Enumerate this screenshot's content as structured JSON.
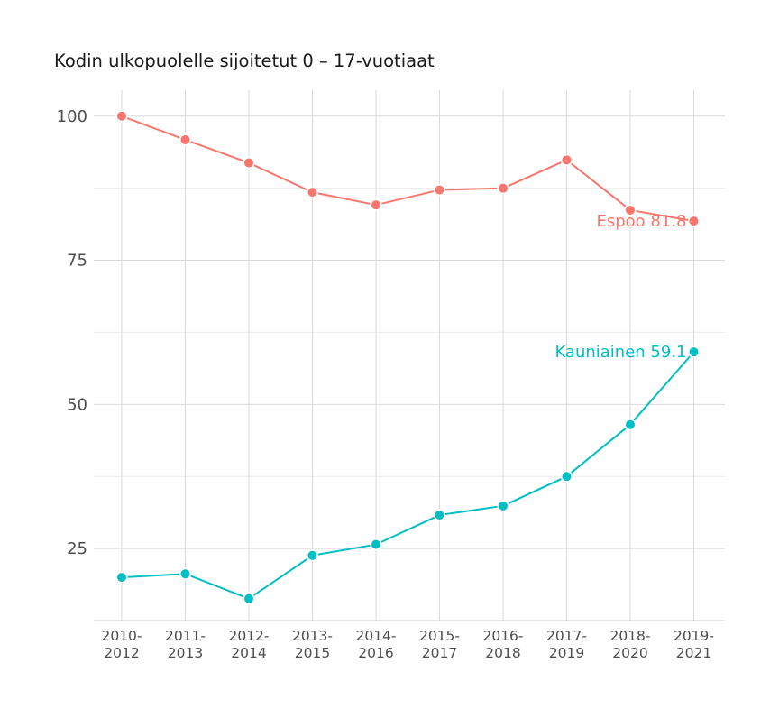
{
  "chart_data": {
    "type": "line",
    "title": "Kodin ulkopuolelle sijoitetut 0 – 17-vuotiaat",
    "xlabel": "",
    "ylabel": "",
    "categories": [
      [
        "2010-",
        "2012"
      ],
      [
        "2011-",
        "2013"
      ],
      [
        "2012-",
        "2014"
      ],
      [
        "2013-",
        "2015"
      ],
      [
        "2014-",
        "2016"
      ],
      [
        "2015-",
        "2017"
      ],
      [
        "2016-",
        "2018"
      ],
      [
        "2017-",
        "2019"
      ],
      [
        "2018-",
        "2020"
      ],
      [
        "2019-",
        "2021"
      ]
    ],
    "yticks": [
      25,
      50,
      75,
      100
    ],
    "ylim": [
      12.5,
      104.5
    ],
    "grid": true,
    "legend": "none",
    "series": [
      {
        "name": "Espoo",
        "color": "#F8766D",
        "values": [
          100,
          95.9,
          91.9,
          86.8,
          84.6,
          87.2,
          87.5,
          92.4,
          83.7,
          81.8
        ],
        "end_label": "Espoo 81.8"
      },
      {
        "name": "Kauniainen",
        "color": "#00BFC4",
        "values": [
          20.0,
          20.6,
          16.3,
          23.8,
          25.7,
          30.8,
          32.4,
          37.5,
          46.5,
          59.1
        ],
        "end_label": "Kauniainen 59.1"
      }
    ]
  }
}
